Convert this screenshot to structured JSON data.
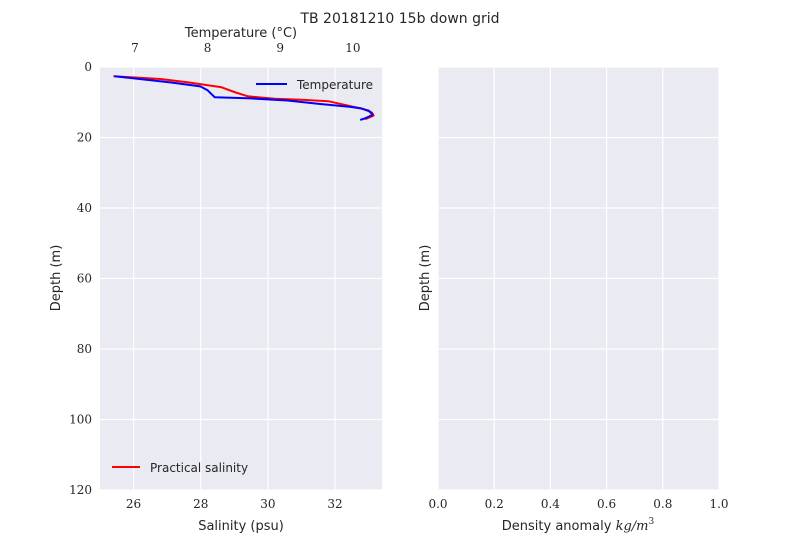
{
  "figure": {
    "title": "TB 20181210 15b down grid"
  },
  "colors": {
    "panel_bg": "#eaeaf2",
    "grid": "#ffffff",
    "salinity": "#ff0000",
    "temperature": "#0000ff",
    "text": "#262626"
  },
  "chart_data": [
    {
      "type": "line",
      "panel": "left",
      "xlabel": "Salinity (psu)",
      "ylabel": "Depth (m)",
      "top_xlabel": "Temperature (°C)",
      "xlim": [
        25.0,
        33.4
      ],
      "top_xlim": [
        6.52,
        10.4
      ],
      "ylim": [
        120,
        0
      ],
      "x_ticks": [
        "26",
        "28",
        "30",
        "32"
      ],
      "top_x_ticks": [
        "7",
        "8",
        "9",
        "10"
      ],
      "y_ticks": [
        "0",
        "20",
        "40",
        "60",
        "80",
        "100",
        "120"
      ],
      "grid": true,
      "series": [
        {
          "name": "Practical salinity",
          "axis": "bottom",
          "legend_position": "lower-left",
          "points": [
            [
              25.4,
              2.6
            ],
            [
              26.8,
              3.4
            ],
            [
              27.6,
              4.3
            ],
            [
              28.6,
              5.7
            ],
            [
              29.0,
              7.1
            ],
            [
              29.4,
              8.3
            ],
            [
              30.2,
              9.0
            ],
            [
              31.0,
              9.3
            ],
            [
              31.8,
              9.7
            ],
            [
              32.5,
              11.2
            ],
            [
              32.8,
              11.8
            ],
            [
              33.1,
              12.9
            ],
            [
              33.15,
              13.8
            ],
            [
              32.9,
              14.8
            ]
          ]
        },
        {
          "name": "Temperature",
          "axis": "top",
          "legend_position": "upper-right",
          "points": [
            [
              6.72,
              2.6
            ],
            [
              7.5,
              4.4
            ],
            [
              7.9,
              5.5
            ],
            [
              8.0,
              6.6
            ],
            [
              8.1,
              8.6
            ],
            [
              8.6,
              8.9
            ],
            [
              9.1,
              9.5
            ],
            [
              9.55,
              10.5
            ],
            [
              9.95,
              11.3
            ],
            [
              10.1,
              11.7
            ],
            [
              10.22,
              12.4
            ],
            [
              10.27,
              13.6
            ],
            [
              10.16,
              14.6
            ],
            [
              10.1,
              15.0
            ]
          ]
        }
      ]
    },
    {
      "type": "line",
      "panel": "right",
      "xlabel": "Density anomaly kg/m³",
      "xlabel_base": "Density anomaly ",
      "xlabel_unit": "kg/m",
      "xlabel_exp": "3",
      "ylabel": "Depth (m)",
      "xlim": [
        0.0,
        1.0
      ],
      "ylim": [
        120,
        0
      ],
      "x_ticks": [
        "0.0",
        "0.2",
        "0.4",
        "0.6",
        "0.8",
        "1.0"
      ],
      "grid": true,
      "series": []
    }
  ]
}
